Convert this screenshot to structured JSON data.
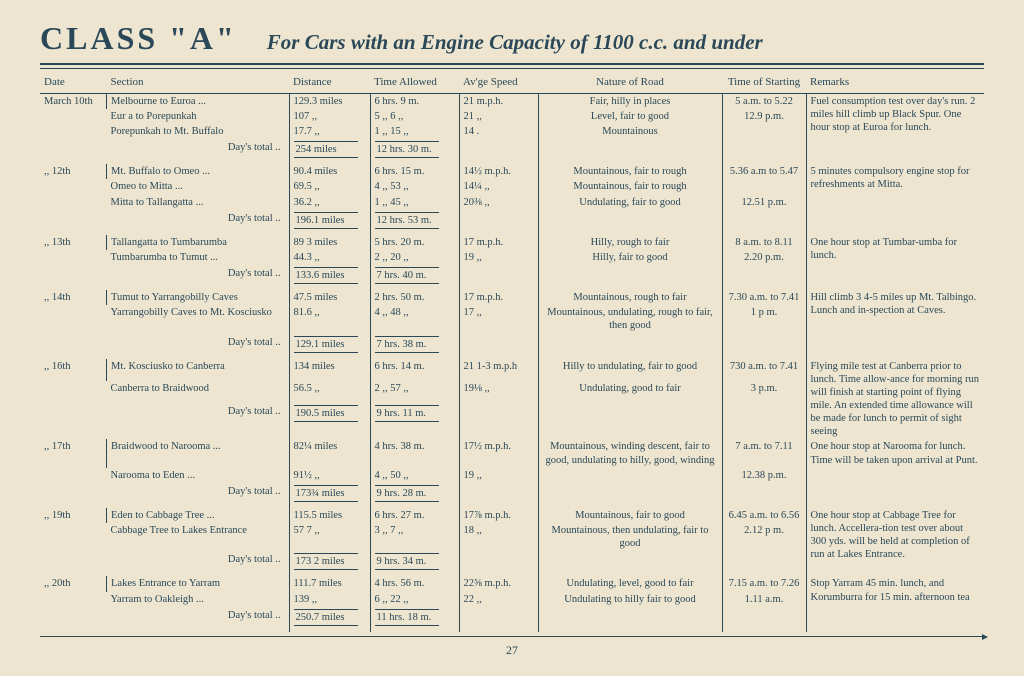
{
  "title": "CLASS \"A\"",
  "subtitle": "For Cars with an Engine Capacity of 1100 c.c. and under",
  "page_number": "27",
  "columns": [
    "Date",
    "Section",
    "Distance",
    "Time Allowed",
    "Av'ge Speed",
    "Nature of Road",
    "Time of Starting",
    "Remarks"
  ],
  "days": [
    {
      "date": "March 10th",
      "rows": [
        {
          "section": "Melbourne to Euroa ...",
          "dist": "129.3 miles",
          "time": "6 hrs. 9 m.",
          "speed": "21 m.p.h.",
          "nature": "Fair, hilly in places",
          "start": "5 a.m. to 5.22"
        },
        {
          "section": "Eur a to Porepunkah",
          "dist": "107    ,,",
          "time": "5  ,,  6 ,,",
          "speed": "21    ,,",
          "nature": "Level, fair to good",
          "start": "12.9 p.m."
        },
        {
          "section": "Porepunkah to Mt. Buffalo",
          "dist": "17.7   ,,",
          "time": "1  ,, 15 ,,",
          "speed": "14 .",
          "nature": "Mountainous",
          "start": ""
        }
      ],
      "total_dist": "254   miles",
      "total_time": "12 hrs. 30 m.",
      "remarks": "Fuel consumption test over day's run. 2 miles hill climb up Black Spur. One hour stop at Euroa for lunch."
    },
    {
      "date": "   ,,   12th",
      "rows": [
        {
          "section": "Mt. Buffalo to Omeo ...",
          "dist": "90.4 miles",
          "time": "6 hrs. 15 m.",
          "speed": "14½ m.p.h.",
          "nature": "Mountainous, fair to rough",
          "start": "5.36 a.m to 5.47"
        },
        {
          "section": "Omeo to Mitta ...",
          "dist": "69.5   ,,",
          "time": "4  ,, 53 ,,",
          "speed": "14¼    ,,",
          "nature": "Mountainous, fair to rough",
          "start": ""
        },
        {
          "section": "Mitta to Tallangatta ...",
          "dist": "36.2   ,,",
          "time": "1  ,, 45 ,,",
          "speed": "20⅜    ,,",
          "nature": "Undulating, fair to good",
          "start": "12.51 p.m."
        }
      ],
      "total_dist": "196.1 miles",
      "total_time": "12 hrs. 53 m.",
      "remarks": "5 minutes compulsory engine stop for refreshments at Mitta."
    },
    {
      "date": "   ,,   13th",
      "rows": [
        {
          "section": "Tallangatta to Tumbarumba",
          "dist": "89 3 miles",
          "time": "5 hrs. 20 m.",
          "speed": "17  m.p.h.",
          "nature": "Hilly, rough to fair",
          "start": "8 a.m. to 8.11"
        },
        {
          "section": "Tumbarumba to Tumut ...",
          "dist": "44.3   ,,",
          "time": "2  ,, 20 ,,",
          "speed": "19    ,,",
          "nature": "Hilly, fair to good",
          "start": "2.20 p.m."
        }
      ],
      "total_dist": "133.6 miles",
      "total_time": "7 hrs. 40 m.",
      "remarks": "One hour stop at Tumbar-umba for lunch."
    },
    {
      "date": "   ,,   14th",
      "rows": [
        {
          "section": "Tumut to Yarrangobilly Caves",
          "dist": "47.5 miles",
          "time": "2 hrs. 50 m.",
          "speed": "17  m.p.h.",
          "nature": "Mountainous, rough to fair",
          "start": "7.30 a.m. to 7.41"
        },
        {
          "section": "Yarrangobilly Caves to Mt. Kosciusko",
          "dist": "81.6   ,,",
          "time": "4  ,, 48 ,,",
          "speed": "17    ,,",
          "nature": "Mountainous, undulating, rough to fair, then good",
          "start": "1 p m."
        }
      ],
      "total_dist": "129.1 miles",
      "total_time": "7 hrs. 38 m.",
      "remarks": "Hill climb 3 4-5 miles up Mt. Talbingo. Lunch and in-spection at Caves."
    },
    {
      "date": "   ,,   16th",
      "rows": [
        {
          "section": "Mt. Kosciusko to Canberra",
          "dist": "134  miles",
          "time": "6 hrs. 14 m.",
          "speed": "21 1-3 m.p.h",
          "nature": "Hilly to undulating, fair to good",
          "start": "730 a.m. to 7.41"
        },
        {
          "section": "Canberra to Braidwood",
          "dist": "56.5   ,,",
          "time": "2  ,, 57 ,,",
          "speed": "19⅛    ,,",
          "nature": "Undulating, good to fair",
          "start": "3 p.m."
        }
      ],
      "total_dist": "190.5 miles",
      "total_time": "9 hrs. 11 m.",
      "remarks": "Flying mile test at Canberra prior to lunch. Time allow-ance for morning run will finish at starting point of flying mile. An extended time allowance will be made for lunch to permit of sight seeing"
    },
    {
      "date": "   ,,   17th",
      "rows": [
        {
          "section": "Braidwood to Narooma ...",
          "dist": "82¼ miles",
          "time": "4 hrs. 38 m.",
          "speed": "17½ m.p.h.",
          "nature": "Mountainous, winding descent, fair to good, undulating to hilly, good, winding",
          "start": "7 a.m. to 7.11"
        },
        {
          "section": "Narooma to Eden ...",
          "dist": "91½   ,,",
          "time": "4  ,, 50 ,,",
          "speed": "19    ,,",
          "nature": "",
          "start": "12.38 p.m."
        }
      ],
      "total_dist": "173¾ miles",
      "total_time": "9 hrs. 28 m.",
      "remarks": "One hour stop at Narooma for lunch. Time will be taken upon arrival at Punt."
    },
    {
      "date": "   ,,   19th",
      "rows": [
        {
          "section": "Eden to Cabbage Tree ...",
          "dist": "115.5 miles",
          "time": "6 hrs. 27 m.",
          "speed": "17⅞ m.p.h.",
          "nature": "Mountainous, fair to good",
          "start": "6.45 a.m. to 6.56"
        },
        {
          "section": "Cabbage Tree to Lakes Entrance",
          "dist": "57 7   ,,",
          "time": "3  ,,  7 ,,",
          "speed": "18    ,,",
          "nature": "Mountainous, then undulating, fair to good",
          "start": "2.12 p m."
        }
      ],
      "total_dist": "173 2 miles",
      "total_time": "9 hrs. 34 m.",
      "remarks": "One hour stop at Cabbage Tree for lunch. Accellera-tion test over about 300 yds. will be held at completion of run at Lakes Entrance."
    },
    {
      "date": "   ,,   20th",
      "rows": [
        {
          "section": "Lakes Entrance to Yarram",
          "dist": "111.7 miles",
          "time": "4 hrs. 56 m.",
          "speed": "22⅝ m.p.h.",
          "nature": "Undulating, level, good to fair",
          "start": "7.15 a.m. to 7.26"
        },
        {
          "section": "Yarram to Oakleigh ...",
          "dist": "139    ,,",
          "time": "6  ,, 22 ,,",
          "speed": "22    ,,",
          "nature": "Undulating to hilly fair to good",
          "start": "1.11 a.m."
        }
      ],
      "total_dist": "250.7 miles",
      "total_time": "11 hrs. 18 m.",
      "remarks": "Stop Yarram 45 min. lunch, and Korumburra for 15 min. afternoon tea"
    }
  ]
}
